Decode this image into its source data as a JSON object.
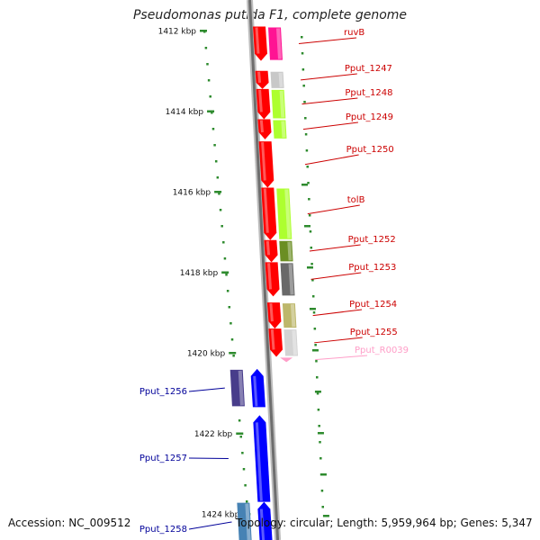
{
  "title": "Pseudomonas putida F1, complete genome",
  "footer": {
    "accession": "Accession: NC_009512",
    "topology": "Topology: circular; Length: 5,959,964 bp; Genes: 5,347"
  },
  "ticks": [
    {
      "label": "1412 kbp",
      "kbp": 1412
    },
    {
      "label": "1414 kbp",
      "kbp": 1414
    },
    {
      "label": "1416 kbp",
      "kbp": 1416
    },
    {
      "label": "1418 kbp",
      "kbp": 1418
    },
    {
      "label": "1420 kbp",
      "kbp": 1420
    },
    {
      "label": "1422 kbp",
      "kbp": 1422
    },
    {
      "label": "1424 kbp",
      "kbp": 1424
    }
  ],
  "genes": [
    {
      "label": "ruvB",
      "start": 1411.9,
      "end": 1412.75,
      "strand": "-",
      "color": "#ff0000",
      "function_color": "#ff1493",
      "label_color": "#cc0000"
    },
    {
      "label": "Pput_1247",
      "start": 1413.0,
      "end": 1413.45,
      "strand": "-",
      "color": "#ff0000",
      "function_color": "#c8c8c8",
      "label_color": "#cc0000"
    },
    {
      "label": "Pput_1248",
      "start": 1413.45,
      "end": 1414.2,
      "strand": "-",
      "color": "#ff0000",
      "function_color": "#adff2f",
      "label_color": "#cc0000"
    },
    {
      "label": "Pput_1249",
      "start": 1414.2,
      "end": 1414.7,
      "strand": "-",
      "color": "#ff0000",
      "function_color": "#adff2f",
      "label_color": "#cc0000"
    },
    {
      "label": "Pput_1250",
      "start": 1414.75,
      "end": 1415.9,
      "strand": "-",
      "color": "#ff0000",
      "function_color": "",
      "label_color": "#cc0000"
    },
    {
      "label": "tolB",
      "start": 1415.9,
      "end": 1417.2,
      "strand": "-",
      "color": "#ff0000",
      "function_color": "#adff2f",
      "label_color": "#cc0000"
    },
    {
      "label": "Pput_1252",
      "start": 1417.2,
      "end": 1417.75,
      "strand": "-",
      "color": "#ff0000",
      "function_color": "#6b8e23",
      "label_color": "#cc0000"
    },
    {
      "label": "Pput_1253",
      "start": 1417.75,
      "end": 1418.6,
      "strand": "-",
      "color": "#ff0000",
      "function_color": "#696969",
      "label_color": "#cc0000"
    },
    {
      "label": "Pput_1254",
      "start": 1418.75,
      "end": 1419.4,
      "strand": "-",
      "color": "#ff0000",
      "function_color": "#bdb76b",
      "label_color": "#cc0000"
    },
    {
      "label": "Pput_1255",
      "start": 1419.4,
      "end": 1420.1,
      "strand": "-",
      "color": "#ff0000",
      "function_color": "#d3d3d3",
      "label_color": "#cc0000"
    },
    {
      "label": "Pput_R0039",
      "start": 1420.12,
      "end": 1420.22,
      "strand": "-",
      "color": "#ff9ec8",
      "function_color": "",
      "label_color": "#ff9ec8"
    },
    {
      "label": "Pput_1256",
      "start": 1420.4,
      "end": 1421.35,
      "strand": "+",
      "color": "#0000ff",
      "function_color": "#483d8b",
      "label_color": "#000099"
    },
    {
      "label": "Pput_1257",
      "start": 1421.55,
      "end": 1423.7,
      "strand": "+",
      "color": "#0000ff",
      "function_color": "",
      "label_color": "#000099"
    },
    {
      "label": "Pput_1258",
      "start": 1423.7,
      "end": 1424.7,
      "strand": "+",
      "color": "#0000ff",
      "function_color": "#4682b4",
      "label_color": "#000099"
    }
  ]
}
